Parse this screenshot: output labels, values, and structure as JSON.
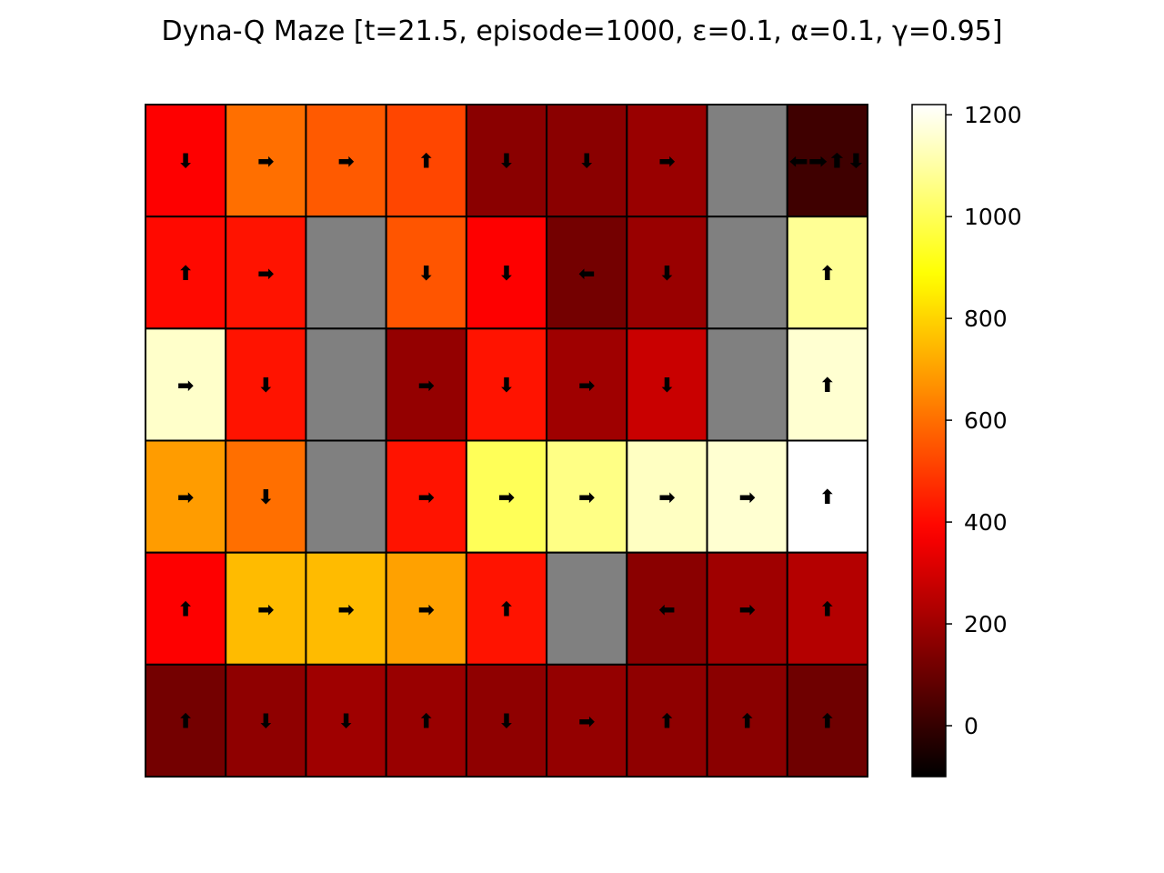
{
  "chart_data": {
    "type": "heatmap",
    "title": "Dyna-Q Maze [t=21.5, episode=1000, ε=0.1, α=0.1, γ=0.95]",
    "rows": 6,
    "cols": 9,
    "wall_color": "#808080",
    "colormap": "hot",
    "cells": [
      [
        {
          "v": 380,
          "a": "⬇"
        },
        {
          "v": 600,
          "a": "➡"
        },
        {
          "v": 560,
          "a": "➡"
        },
        {
          "v": 520,
          "a": "⬆"
        },
        {
          "v": 160,
          "a": "⬇"
        },
        {
          "v": 160,
          "a": "⬇"
        },
        {
          "v": 190,
          "a": "➡"
        },
        {
          "wall": true
        },
        {
          "v": 20,
          "a": "⬅➡⬆⬇"
        }
      ],
      [
        {
          "v": 400,
          "a": "⬆"
        },
        {
          "v": 420,
          "a": "➡"
        },
        {
          "wall": true
        },
        {
          "v": 550,
          "a": "⬇"
        },
        {
          "v": 380,
          "a": "⬇"
        },
        {
          "v": 120,
          "a": "⬅"
        },
        {
          "v": 190,
          "a": "⬇"
        },
        {
          "wall": true
        },
        {
          "v": 1080,
          "a": "⬆"
        }
      ],
      [
        {
          "v": 1150,
          "a": "➡"
        },
        {
          "v": 420,
          "a": "⬇"
        },
        {
          "wall": true
        },
        {
          "v": 180,
          "a": "➡"
        },
        {
          "v": 420,
          "a": "⬇"
        },
        {
          "v": 200,
          "a": "➡"
        },
        {
          "v": 280,
          "a": "⬇"
        },
        {
          "wall": true
        },
        {
          "v": 1160,
          "a": "⬆"
        }
      ],
      [
        {
          "v": 690,
          "a": "➡"
        },
        {
          "v": 600,
          "a": "⬇"
        },
        {
          "wall": true
        },
        {
          "v": 420,
          "a": "➡"
        },
        {
          "v": 1000,
          "a": "➡"
        },
        {
          "v": 1060,
          "a": "➡"
        },
        {
          "v": 1140,
          "a": "➡"
        },
        {
          "v": 1160,
          "a": "➡"
        },
        {
          "v": 1220,
          "a": "⬆"
        }
      ],
      [
        {
          "v": 380,
          "a": "⬆"
        },
        {
          "v": 750,
          "a": "➡"
        },
        {
          "v": 750,
          "a": "➡"
        },
        {
          "v": 700,
          "a": "➡"
        },
        {
          "v": 420,
          "a": "⬆"
        },
        {
          "wall": true
        },
        {
          "v": 160,
          "a": "⬅"
        },
        {
          "v": 200,
          "a": "➡"
        },
        {
          "v": 240,
          "a": "⬆"
        }
      ],
      [
        {
          "v": 120,
          "a": "⬆"
        },
        {
          "v": 170,
          "a": "⬇"
        },
        {
          "v": 200,
          "a": "⬇"
        },
        {
          "v": 190,
          "a": "⬆"
        },
        {
          "v": 170,
          "a": "⬇"
        },
        {
          "v": 180,
          "a": "➡"
        },
        {
          "v": 170,
          "a": "⬆"
        },
        {
          "v": 160,
          "a": "⬆"
        },
        {
          "v": 110,
          "a": "⬆"
        }
      ]
    ],
    "colorbar": {
      "vmin": -100,
      "vmax": 1220,
      "ticks": [
        0,
        200,
        400,
        600,
        800,
        1000,
        1200
      ],
      "tick_labels": [
        "0",
        "200",
        "400",
        "600",
        "800",
        "1000",
        "1200"
      ]
    },
    "grid": false
  }
}
